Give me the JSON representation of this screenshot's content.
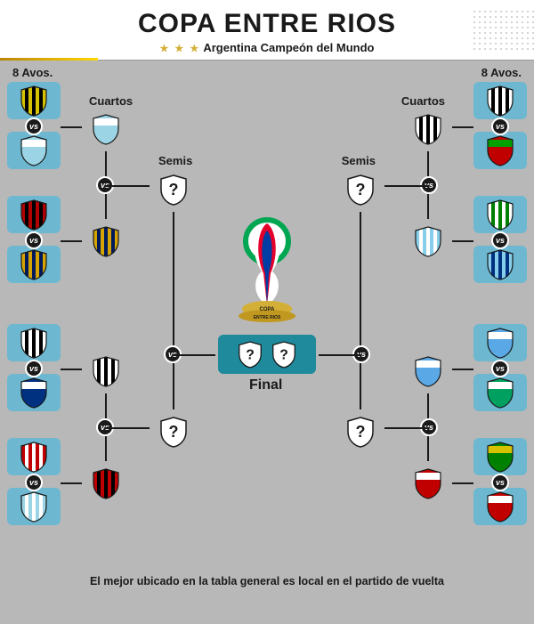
{
  "header": {
    "title": "COPA ENTRE RIOS",
    "subtitle": "Argentina Campeón del Mundo",
    "stars": "★ ★ ★"
  },
  "labels": {
    "r16_left": "8 Avos.",
    "r16_right": "8 Avos.",
    "qf_left": "Cuartos",
    "qf_right": "Cuartos",
    "sf_left": "Semis",
    "sf_right": "Semis",
    "final": "Final",
    "vs": "vs"
  },
  "trophy": {
    "ring_color": "#00a651",
    "ribbon1": "#e4002b",
    "ribbon2": "#003da5",
    "cup_color": "#d4af37",
    "text1": "COPA",
    "text2": "ENTRE RIOS"
  },
  "colors": {
    "slot_bg": "#6db8d0",
    "final_bg": "#1f8a9c",
    "page_bg": "#b8b8b8"
  },
  "footer": "El mejor ubicado en la tabla general es local en el partido de vuelta",
  "left": {
    "r16": [
      {
        "c1": "#d6c200",
        "c2": "#000000",
        "stripes": true
      },
      {
        "c1": "#9bd4e4",
        "c2": "#ffffff",
        "stripes": false
      },
      {
        "c1": "#b00000",
        "c2": "#000000",
        "stripes": true
      },
      {
        "c1": "#d6a400",
        "c2": "#001a5c",
        "stripes": true
      },
      {
        "c1": "#ffffff",
        "c2": "#000000",
        "stripes": true
      },
      {
        "c1": "#003080",
        "c2": "#ffffff",
        "stripes": false
      },
      {
        "c1": "#c00000",
        "c2": "#ffffff",
        "stripes": true
      },
      {
        "c1": "#9bd4e4",
        "c2": "#ffffff",
        "stripes": true
      }
    ],
    "qf": [
      {
        "c1": "#9bd4e4",
        "c2": "#ffffff",
        "stripes": false
      },
      {
        "c1": "#d6a400",
        "c2": "#001a5c",
        "stripes": true
      },
      {
        "c1": "#ffffff",
        "c2": "#000000",
        "stripes": true
      },
      {
        "c1": "#c00000",
        "c2": "#000000",
        "stripes": true
      }
    ],
    "sf": [
      {
        "unknown": true
      },
      {
        "unknown": true
      }
    ]
  },
  "right": {
    "r16": [
      {
        "c1": "#ffffff",
        "c2": "#000000",
        "stripes": true
      },
      {
        "c1": "#c00000",
        "c2": "#00a000",
        "stripes": false
      },
      {
        "c1": "#ffffff",
        "c2": "#008000",
        "stripes": true
      },
      {
        "c1": "#87ceeb",
        "c2": "#003080",
        "stripes": true
      },
      {
        "c1": "#5aa9e6",
        "c2": "#ffffff",
        "stripes": false
      },
      {
        "c1": "#00a060",
        "c2": "#ffffff",
        "stripes": false
      },
      {
        "c1": "#008000",
        "c2": "#d6c200",
        "stripes": false
      },
      {
        "c1": "#c00000",
        "c2": "#ffffff",
        "stripes": false
      }
    ],
    "qf": [
      {
        "c1": "#ffffff",
        "c2": "#000000",
        "stripes": true
      },
      {
        "c1": "#87ceeb",
        "c2": "#ffffff",
        "stripes": true
      },
      {
        "c1": "#5aa9e6",
        "c2": "#ffffff",
        "stripes": false
      },
      {
        "c1": "#c00000",
        "c2": "#ffffff",
        "stripes": false
      }
    ],
    "sf": [
      {
        "unknown": true
      },
      {
        "unknown": true
      }
    ]
  },
  "final_slots": [
    {
      "unknown": true
    },
    {
      "unknown": true
    }
  ]
}
